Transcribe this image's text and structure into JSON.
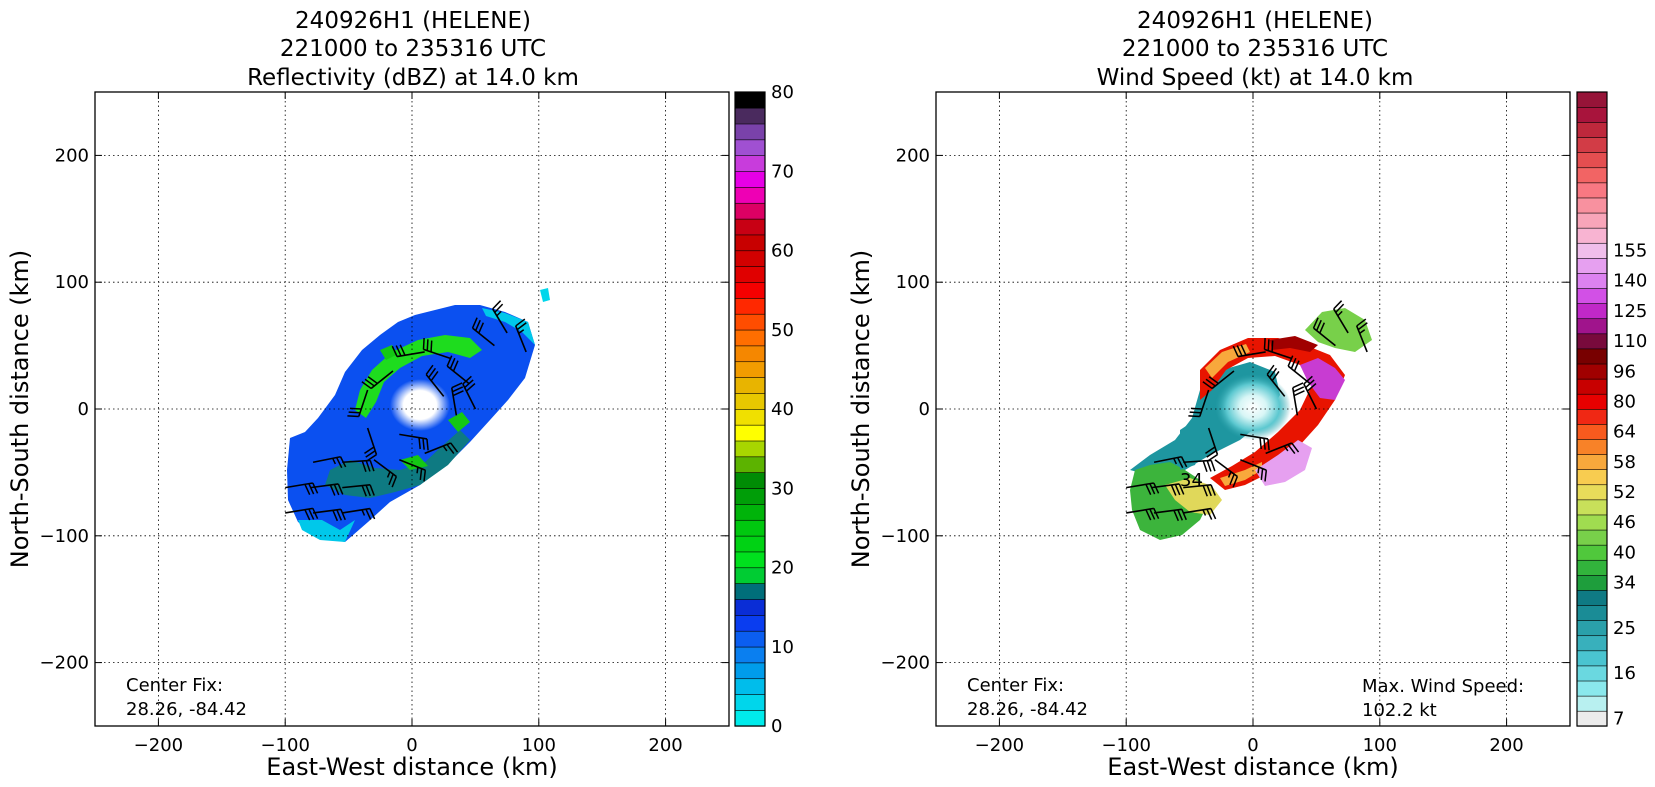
{
  "chart_data": [
    {
      "type": "heatmap",
      "title": [
        "240926H1 (HELENE)",
        "221000 to 235316 UTC",
        "Reflectivity (dBZ) at 14.0 km"
      ],
      "xlabel": "East-West distance (km)",
      "ylabel": "North-South distance (km)",
      "xlim": [
        -250,
        250
      ],
      "ylim": [
        -250,
        250
      ],
      "xticks": [
        -200,
        -100,
        0,
        100,
        200
      ],
      "yticks": [
        200,
        100,
        0,
        -100,
        -200
      ],
      "xtick_labels": [
        "−200",
        "−100",
        "0",
        "100",
        "200"
      ],
      "ytick_labels": [
        "200",
        "100",
        "0",
        "−100",
        "−200"
      ],
      "grid": true,
      "annotations": [
        "Center Fix:",
        "28.26, -84.42"
      ],
      "colorbar": {
        "min": 0,
        "max": 80,
        "tick_values": [
          0,
          10,
          20,
          30,
          40,
          50,
          60,
          70,
          80
        ],
        "tick_labels": [
          "0",
          "10",
          "20",
          "30",
          "40",
          "50",
          "60",
          "70",
          "80"
        ],
        "colors": [
          "#00ebeb",
          "#00d6eb",
          "#00bdeb",
          "#009ceb",
          "#0a7ff0",
          "#0b5ef0",
          "#0a3df0",
          "#0a2dd6",
          "#006e7a",
          "#00cc33",
          "#00e01e",
          "#00d214",
          "#00c80f",
          "#00b40a",
          "#009e08",
          "#008c05",
          "#5cb300",
          "#a8d600",
          "#ffff00",
          "#f0e000",
          "#e8c800",
          "#e8b400",
          "#f29c00",
          "#f58700",
          "#ff6e00",
          "#ff4d00",
          "#ff2800",
          "#f50000",
          "#e00000",
          "#d20000",
          "#c80000",
          "#c80014",
          "#dc0064",
          "#ee00b4",
          "#e600e6",
          "#c83cdc",
          "#a050d2",
          "#7a42aa",
          "#4a2a5e",
          "#000000"
        ]
      },
      "wind_barb_units": "kt",
      "wind_barbs": [
        {
          "x": -78,
          "y": -42,
          "u": -25,
          "v": -5
        },
        {
          "x": -55,
          "y": -42,
          "u": -30,
          "v": -2
        },
        {
          "x": -80,
          "y": -62,
          "u": -30,
          "v": -4
        },
        {
          "x": -55,
          "y": -62,
          "u": -30,
          "v": -3
        },
        {
          "x": -100,
          "y": -62,
          "u": -30,
          "v": -5
        },
        {
          "x": -100,
          "y": -82,
          "u": -30,
          "v": -5
        },
        {
          "x": -78,
          "y": -82,
          "u": -30,
          "v": -4
        },
        {
          "x": -55,
          "y": -82,
          "u": -25,
          "v": -4
        },
        {
          "x": -30,
          "y": -40,
          "u": -20,
          "v": 15
        },
        {
          "x": -10,
          "y": -40,
          "u": -25,
          "v": 10
        },
        {
          "x": -35,
          "y": -15,
          "u": -10,
          "v": 30
        },
        {
          "x": -35,
          "y": 15,
          "u": 10,
          "v": 30
        },
        {
          "x": -15,
          "y": 30,
          "u": 25,
          "v": 20
        },
        {
          "x": 10,
          "y": 45,
          "u": 30,
          "v": 5
        },
        {
          "x": 30,
          "y": 40,
          "u": 30,
          "v": -10
        },
        {
          "x": 45,
          "y": 20,
          "u": 25,
          "v": -20
        },
        {
          "x": 50,
          "y": 0,
          "u": 15,
          "v": -30
        },
        {
          "x": 35,
          "y": -5,
          "u": 5,
          "v": -30
        },
        {
          "x": 65,
          "y": 50,
          "u": 25,
          "v": -20
        },
        {
          "x": 75,
          "y": 60,
          "u": 15,
          "v": -25
        },
        {
          "x": 90,
          "y": 45,
          "u": 10,
          "v": -25
        },
        {
          "x": 10,
          "y": -35,
          "u": -25,
          "v": -10
        },
        {
          "x": -10,
          "y": -20,
          "u": -30,
          "v": 5
        },
        {
          "x": 25,
          "y": 10,
          "u": 20,
          "v": -25
        }
      ]
    },
    {
      "type": "heatmap",
      "title": [
        "240926H1 (HELENE)",
        "221000 to 235316 UTC",
        "Wind Speed (kt) at 14.0 km"
      ],
      "xlabel": "East-West distance (km)",
      "ylabel": "North-South distance (km)",
      "xlim": [
        -250,
        250
      ],
      "ylim": [
        -250,
        250
      ],
      "xticks": [
        -200,
        -100,
        0,
        100,
        200
      ],
      "yticks": [
        200,
        100,
        0,
        -100,
        -200
      ],
      "xtick_labels": [
        "−200",
        "−100",
        "0",
        "100",
        "200"
      ],
      "ytick_labels": [
        "200",
        "100",
        "0",
        "−100",
        "−200"
      ],
      "grid": true,
      "annotations": [
        "Center Fix:",
        "28.26, -84.42",
        "Max. Wind Speed:",
        "102.2 kt"
      ],
      "contour_labels": [
        {
          "x": -52,
          "y": -55,
          "text": "34"
        }
      ],
      "colorbar": {
        "tick_labels": [
          "7",
          "16",
          "25",
          "34",
          "40",
          "46",
          "52",
          "58",
          "64",
          "80",
          "96",
          "110",
          "125",
          "140",
          "155"
        ],
        "tick_bins": [
          0,
          3,
          6,
          9,
          11,
          13,
          15,
          17,
          19,
          21,
          23,
          25,
          27,
          29,
          31
        ],
        "colors": [
          "#ececec",
          "#b8f0f0",
          "#8ae8ec",
          "#6ad8e0",
          "#4ac4d0",
          "#38b0bc",
          "#2aa0aa",
          "#1a8c96",
          "#0f7a84",
          "#1e9e3c",
          "#32b43c",
          "#50c83c",
          "#78d04a",
          "#a0dc50",
          "#c8e05a",
          "#e8dc5a",
          "#f8cc50",
          "#f8a83c",
          "#f88228",
          "#f85a1e",
          "#f02814",
          "#e80000",
          "#c80000",
          "#a00000",
          "#780000",
          "#780a3c",
          "#a0148c",
          "#c028c8",
          "#d250e6",
          "#dc82f0",
          "#e6a0f0",
          "#f0beeb",
          "#f8b4d2",
          "#f8a5b9",
          "#f8919f",
          "#f87882",
          "#f26464",
          "#e44e50",
          "#d23c46",
          "#be283c",
          "#a8143c",
          "#961438"
        ]
      },
      "wind_barb_units": "kt",
      "wind_barbs": [
        {
          "x": -78,
          "y": -42,
          "u": -25,
          "v": -5
        },
        {
          "x": -55,
          "y": -42,
          "u": -30,
          "v": -2
        },
        {
          "x": -80,
          "y": -62,
          "u": -30,
          "v": -4
        },
        {
          "x": -55,
          "y": -62,
          "u": -30,
          "v": -3
        },
        {
          "x": -100,
          "y": -62,
          "u": -30,
          "v": -5
        },
        {
          "x": -100,
          "y": -82,
          "u": -30,
          "v": -5
        },
        {
          "x": -78,
          "y": -82,
          "u": -30,
          "v": -4
        },
        {
          "x": -55,
          "y": -82,
          "u": -25,
          "v": -4
        },
        {
          "x": -30,
          "y": -40,
          "u": -20,
          "v": 15
        },
        {
          "x": -10,
          "y": -40,
          "u": -25,
          "v": 10
        },
        {
          "x": -35,
          "y": -15,
          "u": -10,
          "v": 30
        },
        {
          "x": -35,
          "y": 15,
          "u": 10,
          "v": 30
        },
        {
          "x": -15,
          "y": 30,
          "u": 25,
          "v": 20
        },
        {
          "x": 10,
          "y": 45,
          "u": 30,
          "v": 5
        },
        {
          "x": 30,
          "y": 40,
          "u": 30,
          "v": -10
        },
        {
          "x": 45,
          "y": 20,
          "u": 25,
          "v": -20
        },
        {
          "x": 50,
          "y": 0,
          "u": 15,
          "v": -30
        },
        {
          "x": 35,
          "y": -5,
          "u": 5,
          "v": -30
        },
        {
          "x": 65,
          "y": 50,
          "u": 25,
          "v": -20
        },
        {
          "x": 75,
          "y": 60,
          "u": 15,
          "v": -25
        },
        {
          "x": 90,
          "y": 45,
          "u": 10,
          "v": -25
        },
        {
          "x": 10,
          "y": -35,
          "u": -25,
          "v": -10
        },
        {
          "x": -10,
          "y": -20,
          "u": -30,
          "v": 5
        },
        {
          "x": 25,
          "y": 10,
          "u": 20,
          "v": -25
        }
      ]
    }
  ]
}
